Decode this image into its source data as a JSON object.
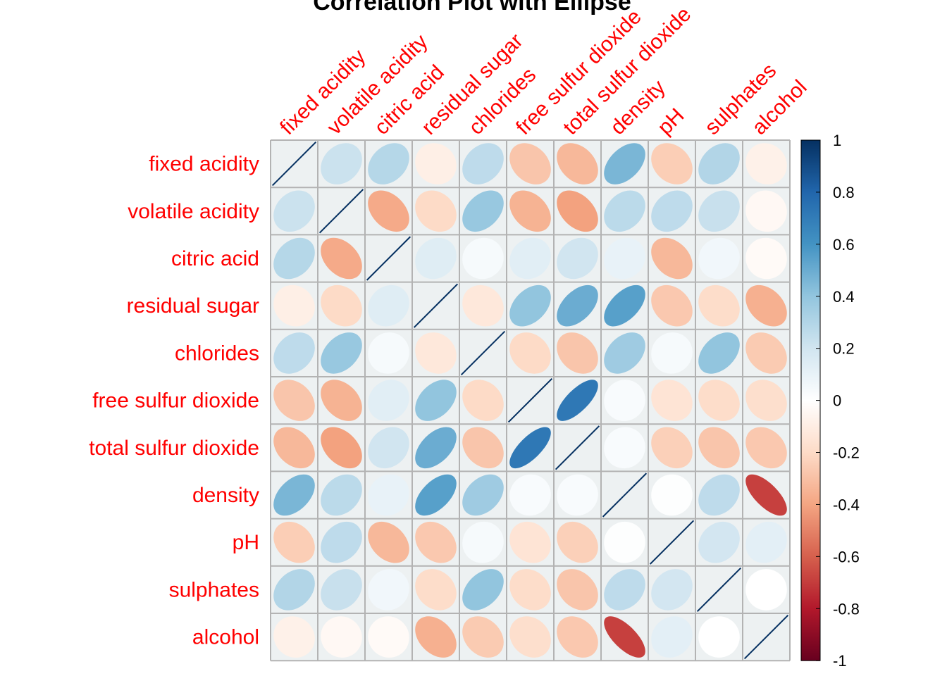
{
  "chart_data": {
    "type": "heatmap",
    "method": "ellipse",
    "title": "Correlation Plot with Ellipse",
    "variables": [
      "fixed acidity",
      "volatile acidity",
      "citric acid",
      "residual sugar",
      "chlorides",
      "free sulfur dioxide",
      "total sulfur dioxide",
      "density",
      "pH",
      "sulphates",
      "alcohol"
    ],
    "matrix": [
      [
        1.0,
        0.22,
        0.29,
        -0.09,
        0.26,
        -0.28,
        -0.33,
        0.46,
        -0.25,
        0.3,
        -0.08
      ],
      [
        0.22,
        1.0,
        -0.38,
        -0.2,
        0.38,
        -0.35,
        -0.41,
        0.27,
        0.26,
        0.23,
        -0.04
      ],
      [
        0.29,
        -0.38,
        1.0,
        0.14,
        0.04,
        0.13,
        0.2,
        0.1,
        -0.33,
        0.06,
        -0.03
      ],
      [
        -0.09,
        -0.2,
        0.14,
        1.0,
        -0.13,
        0.4,
        0.5,
        0.55,
        -0.27,
        -0.19,
        -0.36
      ],
      [
        0.26,
        0.38,
        0.04,
        -0.13,
        1.0,
        -0.2,
        -0.28,
        0.36,
        0.04,
        0.4,
        -0.26
      ],
      [
        -0.28,
        -0.35,
        0.13,
        0.4,
        -0.2,
        1.0,
        0.72,
        0.03,
        -0.15,
        -0.19,
        -0.18
      ],
      [
        -0.33,
        -0.41,
        0.2,
        0.5,
        -0.28,
        0.72,
        1.0,
        0.03,
        -0.24,
        -0.28,
        -0.27
      ],
      [
        0.46,
        0.27,
        0.1,
        0.55,
        0.36,
        0.03,
        0.03,
        1.0,
        0.01,
        0.26,
        -0.69
      ],
      [
        -0.25,
        0.26,
        -0.33,
        -0.27,
        0.04,
        -0.15,
        -0.24,
        0.01,
        1.0,
        0.19,
        0.12
      ],
      [
        0.3,
        0.23,
        0.06,
        -0.19,
        0.4,
        -0.19,
        -0.28,
        0.26,
        0.19,
        1.0,
        -0.0
      ],
      [
        -0.08,
        -0.04,
        -0.03,
        -0.36,
        -0.26,
        -0.18,
        -0.27,
        -0.69,
        0.12,
        -0.0,
        1.0
      ]
    ],
    "colorbar": {
      "range": [
        -1,
        1
      ],
      "ticks": [
        "1",
        "0.8",
        "0.6",
        "0.4",
        "0.2",
        "0",
        "-0.2",
        "-0.4",
        "-0.6",
        "-0.8",
        "-1"
      ],
      "tick_values": [
        1,
        0.8,
        0.6,
        0.4,
        0.2,
        0,
        -0.2,
        -0.4,
        -0.6,
        -0.8,
        -1
      ],
      "palette": [
        "#67001F",
        "#B2182B",
        "#D6604D",
        "#F4A582",
        "#FDDBC7",
        "#FFFFFF",
        "#D1E5F0",
        "#92C5DE",
        "#4393C3",
        "#2166AC",
        "#053061"
      ],
      "placement": "right"
    },
    "grid": true,
    "cell_background": "#EDF1F2",
    "grid_color": "#B3B3B3",
    "label_color": "#FF0000"
  }
}
